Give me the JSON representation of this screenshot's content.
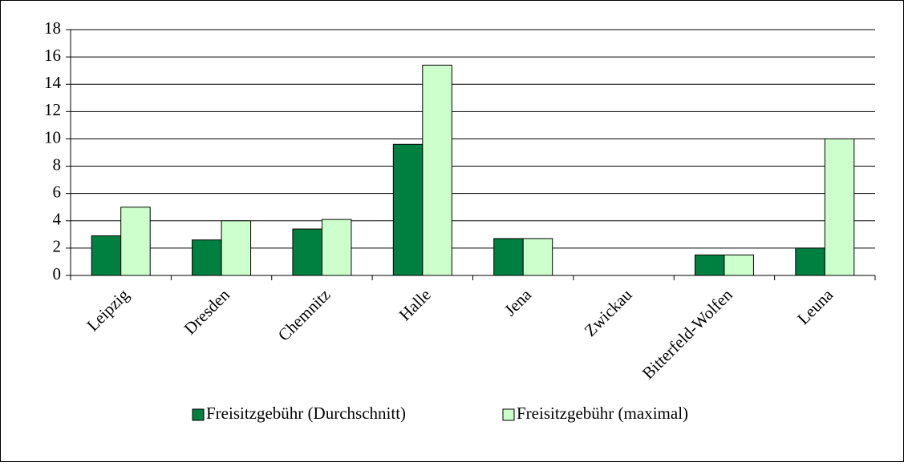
{
  "chart_data": {
    "type": "bar",
    "categories": [
      "Leipzig",
      "Dresden",
      "Chemnitz",
      "Halle",
      "Jena",
      "Zwickau",
      "Bitterfeld-Wolfen",
      "Leuna"
    ],
    "series": [
      {
        "name": "Freisitzgebühr (Durchschnitt)",
        "color": "#008040",
        "values": [
          2.9,
          2.6,
          3.4,
          9.6,
          2.7,
          0,
          1.5,
          2.0
        ]
      },
      {
        "name": "Freisitzgebühr (maximal)",
        "color": "#ccffcc",
        "values": [
          5.0,
          4.0,
          4.1,
          15.4,
          2.7,
          0,
          1.5,
          10.0
        ]
      }
    ],
    "ylim": [
      0,
      18
    ],
    "yticks": [
      0,
      2,
      4,
      6,
      8,
      10,
      12,
      14,
      16,
      18
    ],
    "grid": true,
    "legend": "bottom"
  }
}
